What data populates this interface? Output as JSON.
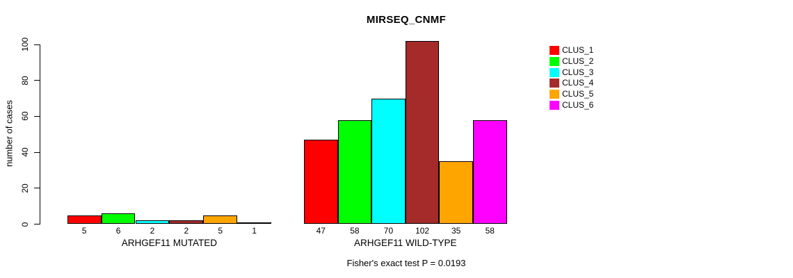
{
  "chart_data": {
    "type": "bar",
    "title": "MIRSEQ_CNMF",
    "ylabel": "number of cases",
    "ylim": [
      0,
      100
    ],
    "yticks": [
      0,
      20,
      40,
      60,
      80,
      100
    ],
    "grid": false,
    "legend_position": "top-right",
    "series": [
      {
        "name": "CLUS_1",
        "color": "#FF0000"
      },
      {
        "name": "CLUS_2",
        "color": "#00FF00"
      },
      {
        "name": "CLUS_3",
        "color": "#00FFFF"
      },
      {
        "name": "CLUS_4",
        "color": "#A52A2A"
      },
      {
        "name": "CLUS_5",
        "color": "#FFA500"
      },
      {
        "name": "CLUS_6",
        "color": "#FF00FF"
      }
    ],
    "groups": [
      {
        "label": "ARHGEF11 MUTATED",
        "values": [
          5,
          6,
          2,
          2,
          5,
          1
        ]
      },
      {
        "label": "ARHGEF11 WILD-TYPE",
        "values": [
          47,
          58,
          70,
          102,
          35,
          58
        ]
      }
    ],
    "bar_value_labels": true,
    "annotation": "Fisher's exact test P = 0.0193"
  }
}
